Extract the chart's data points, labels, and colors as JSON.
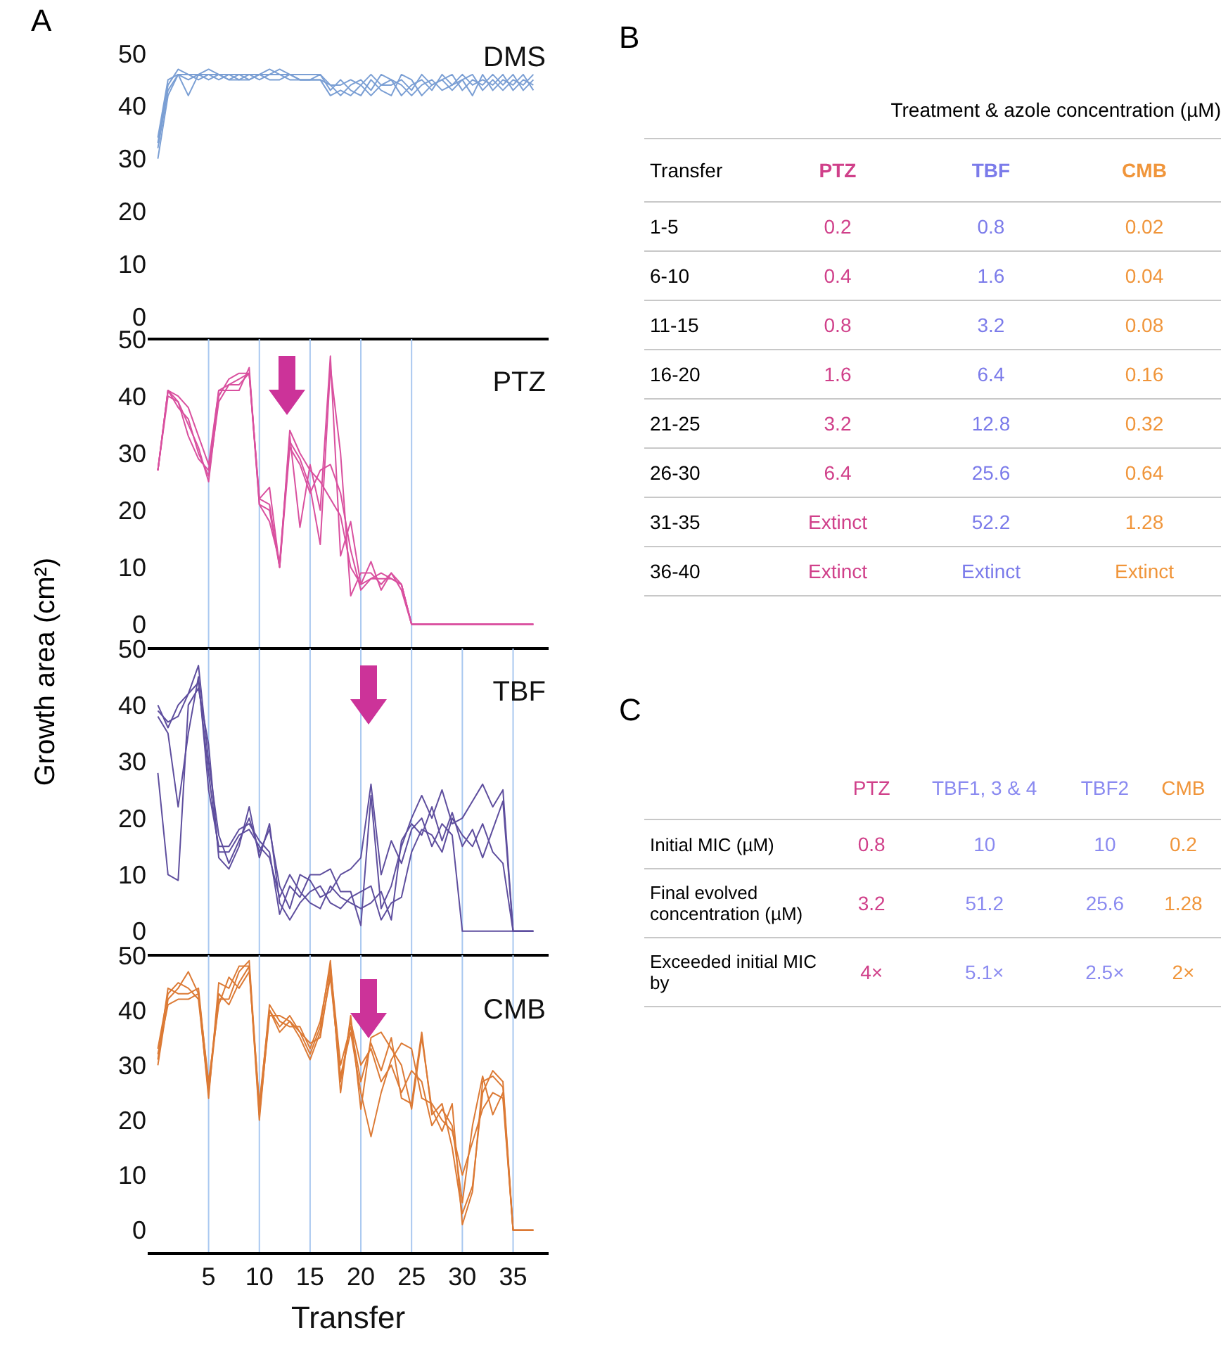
{
  "chart_data": [
    {
      "type": "line",
      "title": "DMS",
      "annotations": [
        "A"
      ],
      "x": [
        0,
        1,
        2,
        3,
        4,
        5,
        6,
        7,
        8,
        9,
        10,
        11,
        12,
        13,
        14,
        15,
        16,
        17,
        18,
        19,
        20,
        21,
        22,
        23,
        24,
        25,
        26,
        27,
        28,
        29,
        30,
        31,
        32,
        33,
        34,
        35,
        36,
        37
      ],
      "xlim": [
        -1,
        38.5
      ],
      "xticks": [
        5,
        10,
        15,
        20,
        25,
        30,
        35
      ],
      "ylim": [
        -4,
        50
      ],
      "yticks": [
        0,
        10,
        20,
        30,
        40,
        50
      ],
      "tick_labels": "y",
      "grid": false,
      "series": [
        {
          "color": "#7b9fd4",
          "values": [
            30,
            42,
            46,
            45,
            46,
            46,
            45,
            46,
            45,
            46,
            46,
            45,
            45,
            46,
            45,
            45,
            45,
            42,
            43,
            42,
            44,
            42,
            44,
            45,
            42,
            44,
            45,
            43,
            46,
            44,
            45,
            42,
            46,
            43,
            45,
            44,
            46,
            43
          ]
        },
        {
          "color": "#7b9fd4",
          "values": [
            33,
            44,
            47,
            46,
            45,
            46,
            46,
            45,
            46,
            45,
            46,
            47,
            46,
            46,
            45,
            45,
            46,
            43,
            45,
            43,
            42,
            45,
            43,
            42,
            46,
            45,
            42,
            44,
            45,
            46,
            43,
            45,
            44,
            46,
            44,
            46,
            43,
            45
          ]
        },
        {
          "color": "#7b9fd4",
          "values": [
            34,
            45,
            46,
            42,
            46,
            45,
            46,
            45,
            45,
            45,
            46,
            46,
            46,
            45,
            45,
            45,
            45,
            44,
            42,
            44,
            45,
            43,
            46,
            45,
            44,
            42,
            44,
            45,
            43,
            44,
            46,
            44,
            45,
            44,
            46,
            43,
            45,
            44
          ]
        },
        {
          "color": "#7b9fd4",
          "values": [
            32,
            43,
            46,
            46,
            46,
            47,
            46,
            46,
            46,
            46,
            45,
            46,
            47,
            46,
            46,
            46,
            46,
            44,
            44,
            45,
            44,
            46,
            44,
            44,
            45,
            43,
            46,
            44,
            45,
            43,
            45,
            46,
            43,
            45,
            43,
            45,
            44,
            46
          ]
        }
      ]
    },
    {
      "type": "line",
      "title": "PTZ",
      "ylabel": "Growth area (cm²)",
      "x": [
        0,
        1,
        2,
        3,
        4,
        5,
        6,
        7,
        8,
        9,
        10,
        11,
        12,
        13,
        14,
        15,
        16,
        17,
        18,
        19,
        20,
        21,
        22,
        23,
        24,
        25,
        26,
        27,
        28,
        29,
        30,
        31,
        32,
        33,
        34,
        35,
        36,
        37
      ],
      "xlim": [
        -1,
        38.5
      ],
      "xticks": [
        5,
        10,
        15,
        20,
        25,
        30,
        35
      ],
      "ylim": [
        -4,
        50
      ],
      "yticks": [
        0,
        10,
        20,
        30,
        40,
        50
      ],
      "tick_labels": "y",
      "grid": false,
      "ref_lines": [
        {
          "axis": "x",
          "value": 5,
          "color": "#a9c8f0"
        },
        {
          "axis": "x",
          "value": 10,
          "color": "#a9c8f0"
        },
        {
          "axis": "x",
          "value": 15,
          "color": "#a9c8f0"
        },
        {
          "axis": "x",
          "value": 20,
          "color": "#a9c8f0"
        },
        {
          "axis": "x",
          "value": 25,
          "color": "#a9c8f0"
        }
      ],
      "series": [
        {
          "color": "#d9509f",
          "values": [
            27,
            41,
            40,
            38,
            33,
            28,
            41,
            42,
            43,
            44,
            21,
            20,
            10,
            34,
            30,
            27,
            25,
            22,
            19,
            10,
            7,
            11,
            6,
            9,
            7,
            0,
            0,
            0,
            0,
            0,
            0,
            0,
            0,
            0,
            0,
            0,
            0,
            0
          ]
        },
        {
          "color": "#d9509f",
          "values": [
            27,
            41,
            39,
            35,
            31,
            25,
            40,
            43,
            44,
            44,
            22,
            24,
            10,
            33,
            17,
            28,
            20,
            47,
            12,
            18,
            7,
            8,
            9,
            8,
            7,
            0,
            0,
            0,
            0,
            0,
            0,
            0,
            0,
            0,
            0,
            0,
            0,
            0
          ]
        },
        {
          "color": "#d9509f",
          "values": [
            27,
            40,
            39,
            33,
            29,
            27,
            41,
            41,
            41,
            45,
            21,
            18,
            11,
            32,
            29,
            24,
            14,
            45,
            30,
            5,
            9,
            9,
            7,
            9,
            6,
            0,
            0,
            0,
            0,
            0,
            0,
            0,
            0,
            0,
            0,
            0,
            0,
            0
          ]
        },
        {
          "color": "#d9509f",
          "values": [
            27,
            41,
            38,
            36,
            30,
            26,
            39,
            42,
            42,
            44,
            22,
            21,
            10,
            31,
            28,
            23,
            27,
            28,
            23,
            13,
            6,
            8,
            8,
            8,
            7,
            0,
            0,
            0,
            0,
            0,
            0,
            0,
            0,
            0,
            0,
            0,
            0,
            0
          ]
        }
      ]
    },
    {
      "type": "line",
      "title": "TBF",
      "x": [
        0,
        1,
        2,
        3,
        4,
        5,
        6,
        7,
        8,
        9,
        10,
        11,
        12,
        13,
        14,
        15,
        16,
        17,
        18,
        19,
        20,
        21,
        22,
        23,
        24,
        25,
        26,
        27,
        28,
        29,
        30,
        31,
        32,
        33,
        34,
        35,
        36,
        37
      ],
      "xlim": [
        -1,
        38.5
      ],
      "xticks": [
        5,
        10,
        15,
        20,
        25,
        30,
        35
      ],
      "ylim": [
        -4,
        50
      ],
      "yticks": [
        0,
        10,
        20,
        30,
        40,
        50
      ],
      "tick_labels": "y",
      "grid": false,
      "ref_lines": [
        {
          "axis": "x",
          "value": 5,
          "color": "#a9c8f0"
        },
        {
          "axis": "x",
          "value": 10,
          "color": "#a9c8f0"
        },
        {
          "axis": "x",
          "value": 15,
          "color": "#a9c8f0"
        },
        {
          "axis": "x",
          "value": 20,
          "color": "#a9c8f0"
        },
        {
          "axis": "x",
          "value": 25,
          "color": "#a9c8f0"
        },
        {
          "axis": "x",
          "value": 30,
          "color": "#a9c8f0"
        },
        {
          "axis": "x",
          "value": 35,
          "color": "#a9c8f0"
        }
      ],
      "series": [
        {
          "color": "#5e4e9e",
          "values": [
            40,
            36,
            40,
            42,
            47,
            30,
            17,
            12,
            16,
            20,
            14,
            18,
            8,
            4,
            10,
            9,
            6,
            7,
            10,
            11,
            13,
            26,
            10,
            16,
            12,
            18,
            20,
            15,
            19,
            17,
            0,
            0,
            0,
            0,
            0,
            0,
            0,
            0
          ]
        },
        {
          "color": "#5e4e9e",
          "values": [
            38,
            35,
            22,
            35,
            45,
            25,
            15,
            15,
            18,
            19,
            16,
            14,
            3,
            8,
            6,
            10,
            10,
            11,
            7,
            7,
            1,
            24,
            4,
            8,
            15,
            20,
            24,
            20,
            25,
            19,
            20,
            23,
            26,
            22,
            25,
            0,
            0,
            0
          ]
        },
        {
          "color": "#5e4e9e",
          "values": [
            28,
            10,
            9,
            40,
            43,
            33,
            13,
            11,
            15,
            22,
            13,
            19,
            5,
            2,
            5,
            7,
            8,
            5,
            4,
            6,
            7,
            8,
            2,
            5,
            6,
            14,
            18,
            17,
            14,
            20,
            17,
            15,
            19,
            14,
            12,
            0,
            0,
            0
          ]
        },
        {
          "color": "#5e4e9e",
          "values": [
            39,
            37,
            38,
            42,
            44,
            28,
            14,
            14,
            17,
            18,
            15,
            13,
            6,
            10,
            7,
            5,
            4,
            8,
            6,
            5,
            4,
            5,
            7,
            2,
            16,
            19,
            17,
            22,
            16,
            21,
            15,
            18,
            13,
            18,
            23,
            0,
            0,
            0
          ]
        }
      ]
    },
    {
      "type": "line",
      "title": "CMB",
      "xlabel": "Transfer",
      "x": [
        0,
        1,
        2,
        3,
        4,
        5,
        6,
        7,
        8,
        9,
        10,
        11,
        12,
        13,
        14,
        15,
        16,
        17,
        18,
        19,
        20,
        21,
        22,
        23,
        24,
        25,
        26,
        27,
        28,
        29,
        30,
        31,
        32,
        33,
        34,
        35,
        36,
        37
      ],
      "xlim": [
        -1,
        38.5
      ],
      "xticks": [
        5,
        10,
        15,
        20,
        25,
        30,
        35
      ],
      "ylim": [
        -4,
        50
      ],
      "yticks": [
        0,
        10,
        20,
        30,
        40,
        50
      ],
      "grid": false,
      "ref_lines": [
        {
          "axis": "x",
          "value": 5,
          "color": "#a9c8f0"
        },
        {
          "axis": "x",
          "value": 10,
          "color": "#a9c8f0"
        },
        {
          "axis": "x",
          "value": 15,
          "color": "#a9c8f0"
        },
        {
          "axis": "x",
          "value": 20,
          "color": "#a9c8f0"
        },
        {
          "axis": "x",
          "value": 25,
          "color": "#a9c8f0"
        },
        {
          "axis": "x",
          "value": 30,
          "color": "#a9c8f0"
        },
        {
          "axis": "x",
          "value": 35,
          "color": "#a9c8f0"
        }
      ],
      "series": [
        {
          "color": "#dc7a35",
          "values": [
            30,
            42,
            44,
            47,
            43,
            24,
            45,
            44,
            48,
            48,
            20,
            40,
            37,
            39,
            36,
            32,
            37,
            49,
            25,
            39,
            22,
            35,
            36,
            33,
            30,
            22,
            35,
            22,
            18,
            23,
            1,
            7,
            27,
            28,
            26,
            0,
            0,
            0
          ]
        },
        {
          "color": "#dc7a35",
          "values": [
            33,
            43,
            45,
            44,
            42,
            25,
            42,
            42,
            47,
            49,
            22,
            41,
            38,
            37,
            37,
            33,
            38,
            48,
            30,
            37,
            27,
            34,
            29,
            35,
            24,
            23,
            36,
            21,
            23,
            15,
            3,
            8,
            25,
            29,
            27,
            0,
            0,
            0
          ]
        },
        {
          "color": "#dc7a35",
          "values": [
            31,
            44,
            43,
            43,
            44,
            26,
            43,
            41,
            45,
            48,
            21,
            39,
            39,
            38,
            35,
            31,
            36,
            46,
            28,
            36,
            25,
            17,
            25,
            31,
            34,
            33,
            24,
            23,
            20,
            18,
            10,
            16,
            22,
            25,
            24,
            0,
            0,
            0
          ]
        },
        {
          "color": "#dc7a35",
          "values": [
            32,
            41,
            42,
            42,
            43,
            27,
            41,
            46,
            44,
            47,
            23,
            40,
            36,
            38,
            36,
            34,
            35,
            47,
            27,
            38,
            30,
            33,
            27,
            30,
            25,
            29,
            27,
            19,
            22,
            19,
            5,
            19,
            28,
            21,
            25,
            0,
            0,
            0
          ]
        }
      ]
    },
    {
      "type": "other",
      "annotations": [
        "B"
      ],
      "title": "Treatment & azole concentration (µM)",
      "ylabel": "Transfer",
      "categories": [
        "PTZ",
        "TBF",
        "CMB"
      ],
      "colors": [
        "#d0408a",
        "#7b7bea",
        "#f0953a"
      ],
      "y_categories": [
        "1-5",
        "6-10",
        "11-15",
        "16-20",
        "21-25",
        "26-30",
        "31-35",
        "36-40"
      ],
      "cell_labels": [
        [
          "0.2",
          "0.8",
          "0.02"
        ],
        [
          "0.4",
          "1.6",
          "0.04"
        ],
        [
          "0.8",
          "3.2",
          "0.08"
        ],
        [
          "1.6",
          "6.4",
          "0.16"
        ],
        [
          "3.2",
          "12.8",
          "0.32"
        ],
        [
          "6.4",
          "25.6",
          "0.64"
        ],
        [
          "Extinct",
          "52.2",
          "1.28"
        ],
        [
          "Extinct",
          "Extinct",
          "Extinct"
        ]
      ]
    },
    {
      "type": "other",
      "annotations": [
        "C"
      ],
      "categories": [
        "PTZ",
        "TBF1, 3 & 4",
        "TBF2",
        "CMB"
      ],
      "colors": [
        "#d0408a",
        "#8a8af0",
        "#8a8af0",
        "#f0953a"
      ],
      "y_categories": [
        "Initial MIC (µM)",
        "Final evolved concentration (µM)",
        "Exceeded initial MIC by"
      ],
      "cell_labels": [
        [
          "0.8",
          "10",
          "10",
          "0.2"
        ],
        [
          "3.2",
          "51.2",
          "25.6",
          "1.28"
        ],
        [
          "4×",
          "5.1×",
          "2.5×",
          "2×"
        ]
      ]
    }
  ]
}
